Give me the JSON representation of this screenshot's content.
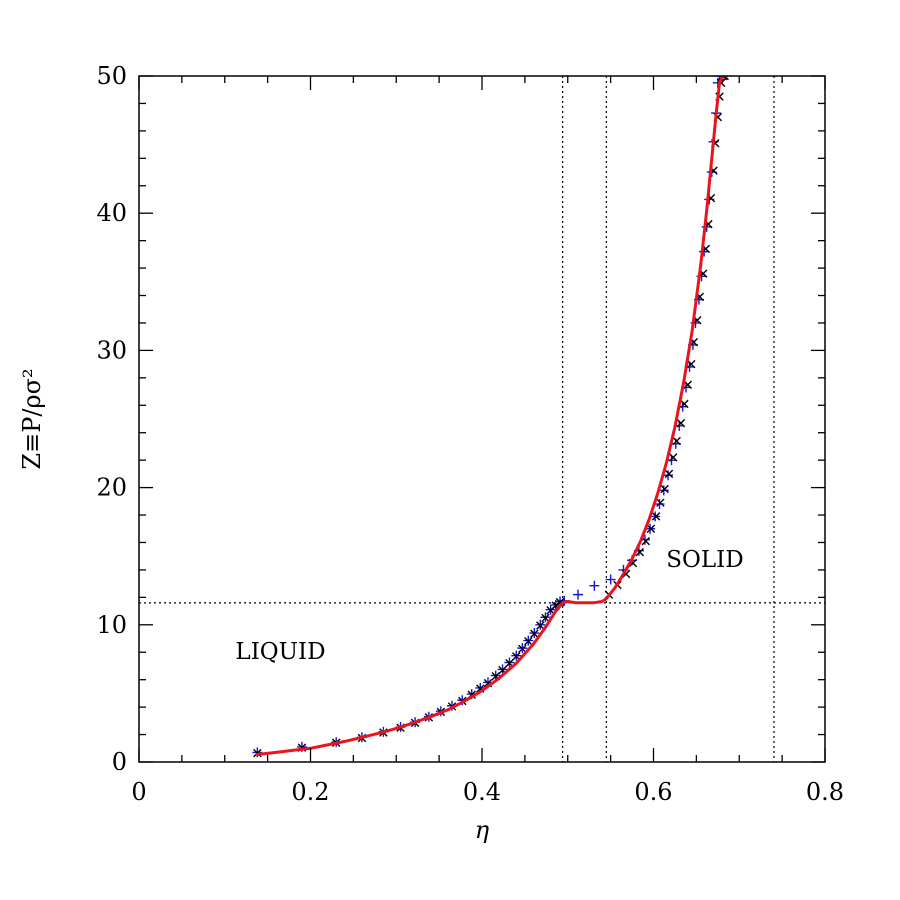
{
  "chart_data": {
    "type": "scatter",
    "xlabel": "η",
    "ylabel": "Z≡P/ρσ²",
    "xlim": [
      0,
      0.8
    ],
    "ylim": [
      0,
      50
    ],
    "x_major_ticks": [
      0,
      0.2,
      0.4,
      0.6,
      0.8
    ],
    "x_tick_labels": [
      "0",
      "0.2",
      "0.4",
      "0.6",
      "0.8"
    ],
    "x_minor_step": 0.05,
    "y_major_ticks": [
      0,
      10,
      20,
      30,
      40,
      50
    ],
    "y_tick_labels": [
      "0",
      "10",
      "20",
      "30",
      "40",
      "50"
    ],
    "y_minor_step": 2,
    "grid": false,
    "reference_lines": {
      "vertical_x": [
        0.494,
        0.545,
        0.7405
      ],
      "horizontal_y": [
        11.6
      ],
      "style": "dotted",
      "color": "#000000"
    },
    "annotations": [
      {
        "text": "LIQUID",
        "x": 0.165,
        "y": 7.5
      },
      {
        "text": "SOLID",
        "x": 0.66,
        "y": 14.2
      }
    ],
    "series": [
      {
        "marker": "plus",
        "color": "#1515d8",
        "x": [
          0.138,
          0.19,
          0.23,
          0.26,
          0.285,
          0.305,
          0.322,
          0.338,
          0.352,
          0.365,
          0.377,
          0.388,
          0.398,
          0.407,
          0.416,
          0.424,
          0.432,
          0.44,
          0.447,
          0.454,
          0.461,
          0.468,
          0.474,
          0.48,
          0.486,
          0.491,
          0.496,
          0.512,
          0.531,
          0.55,
          0.565,
          0.575,
          0.583,
          0.59,
          0.596,
          0.602,
          0.607,
          0.612,
          0.617,
          0.621,
          0.626,
          0.63,
          0.634,
          0.638,
          0.642,
          0.646,
          0.649,
          0.653,
          0.656,
          0.659,
          0.662,
          0.665,
          0.668,
          0.67,
          0.673,
          0.675,
          0.677,
          0.679,
          0.681
        ],
        "y": [
          0.7,
          1.1,
          1.45,
          1.8,
          2.2,
          2.55,
          2.9,
          3.3,
          3.7,
          4.1,
          4.5,
          4.95,
          5.4,
          5.8,
          6.3,
          6.75,
          7.25,
          7.75,
          8.3,
          8.85,
          9.4,
          10.0,
          10.55,
          11.1,
          11.45,
          11.7,
          11.75,
          12.2,
          12.85,
          13.3,
          14.0,
          14.7,
          15.4,
          16.2,
          17.0,
          17.9,
          18.8,
          19.8,
          20.9,
          22.0,
          23.2,
          24.5,
          25.9,
          27.3,
          28.8,
          30.4,
          32.0,
          33.7,
          35.4,
          37.2,
          39.0,
          41.0,
          43.0,
          45.2,
          47.3,
          49.5,
          50.0,
          50.0,
          50.0
        ]
      },
      {
        "marker": "cross",
        "color": "#000000",
        "x": [
          0.138,
          0.19,
          0.23,
          0.26,
          0.285,
          0.305,
          0.322,
          0.338,
          0.352,
          0.365,
          0.377,
          0.388,
          0.398,
          0.407,
          0.416,
          0.424,
          0.432,
          0.44,
          0.447,
          0.454,
          0.461,
          0.468,
          0.474,
          0.48,
          0.486,
          0.491,
          0.548,
          0.558,
          0.568,
          0.576,
          0.584,
          0.591,
          0.597,
          0.603,
          0.608,
          0.613,
          0.618,
          0.623,
          0.627,
          0.632,
          0.636,
          0.64,
          0.644,
          0.647,
          0.651,
          0.654,
          0.658,
          0.661,
          0.664,
          0.667,
          0.67,
          0.672,
          0.675,
          0.677,
          0.679,
          0.681,
          0.683
        ],
        "y": [
          0.65,
          1.05,
          1.4,
          1.75,
          2.15,
          2.5,
          2.85,
          3.25,
          3.65,
          4.05,
          4.45,
          4.9,
          5.35,
          5.75,
          6.25,
          6.7,
          7.2,
          7.7,
          8.25,
          8.8,
          9.35,
          9.95,
          10.5,
          11.05,
          11.4,
          11.65,
          12.2,
          12.9,
          13.7,
          14.5,
          15.3,
          16.1,
          17.0,
          17.9,
          18.9,
          19.9,
          21.0,
          22.2,
          23.4,
          24.7,
          26.1,
          27.5,
          29.0,
          30.6,
          32.2,
          33.9,
          35.6,
          37.4,
          39.2,
          41.1,
          43.1,
          45.1,
          47.0,
          48.5,
          49.5,
          50.0,
          50.0
        ]
      },
      {
        "marker": "line",
        "color": "#e8141e",
        "x": [
          0.138,
          0.16,
          0.18,
          0.2,
          0.22,
          0.24,
          0.26,
          0.28,
          0.3,
          0.32,
          0.34,
          0.36,
          0.38,
          0.4,
          0.42,
          0.44,
          0.46,
          0.475,
          0.485,
          0.494,
          0.5,
          0.51,
          0.52,
          0.53,
          0.54,
          0.545,
          0.555,
          0.565,
          0.575,
          0.585,
          0.595,
          0.605,
          0.615,
          0.625,
          0.635,
          0.645,
          0.655,
          0.662,
          0.668,
          0.673,
          0.677,
          0.681,
          0.684
        ],
        "y": [
          0.55,
          0.7,
          0.85,
          1.0,
          1.25,
          1.5,
          1.8,
          2.1,
          2.45,
          2.85,
          3.3,
          3.8,
          4.45,
          5.2,
          6.1,
          7.2,
          8.6,
          9.9,
          10.9,
          11.6,
          11.7,
          11.6,
          11.6,
          11.6,
          11.7,
          11.9,
          12.7,
          13.7,
          14.8,
          16.1,
          17.7,
          19.6,
          21.8,
          24.4,
          27.6,
          31.4,
          36.2,
          40.2,
          44.0,
          47.2,
          49.5,
          50.0,
          50.0
        ]
      }
    ]
  }
}
